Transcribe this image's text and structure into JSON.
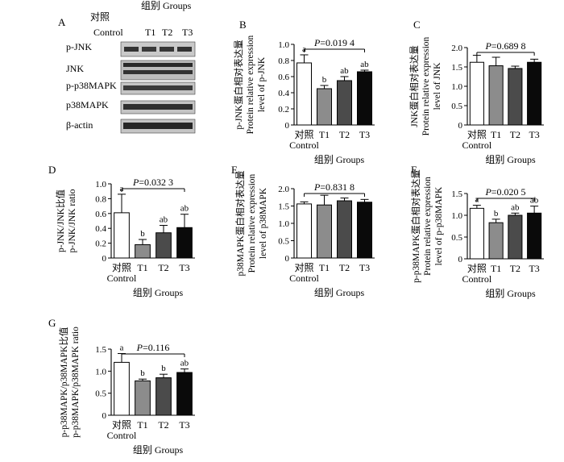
{
  "blot": {
    "letter": "A",
    "groups_title": "组别 Groups",
    "column_labels": [
      "对照",
      "Control",
      "T1",
      "T2",
      "T3"
    ],
    "rows": [
      "p-JNK",
      "JNK",
      "p-p38MAPK",
      "p38MAPK",
      "β-actin"
    ]
  },
  "chart_data": [
    {
      "letter": "B",
      "type": "bar",
      "categories": [
        "对照\nControl",
        "T1",
        "T2",
        "T3"
      ],
      "values": [
        0.77,
        0.45,
        0.55,
        0.66
      ],
      "errors": [
        0.1,
        0.04,
        0.05,
        0.02
      ],
      "sig_letters": [
        "a",
        "b",
        "ab",
        "ab"
      ],
      "p_value": "P=0.019 4",
      "ylabel": [
        "p-JNK蛋白相对表达量",
        "Protein relative expression",
        "level of p-JNK"
      ],
      "xlabel": "组别 Groups",
      "ylim": [
        0,
        1.0
      ],
      "yticks": [
        "0",
        "0.2",
        "0.4",
        "0.6",
        "0.8",
        "1.0"
      ]
    },
    {
      "letter": "C",
      "type": "bar",
      "categories": [
        "对照\nControl",
        "T1",
        "T2",
        "T3"
      ],
      "values": [
        1.62,
        1.53,
        1.46,
        1.62
      ],
      "errors": [
        0.18,
        0.22,
        0.06,
        0.08
      ],
      "sig_letters": [
        "",
        "",
        "",
        ""
      ],
      "p_value": "P=0.689 8",
      "ylabel": [
        "JNK蛋白相对表达量",
        "Protein relative expression",
        "level of JNK"
      ],
      "xlabel": "组别 Groups",
      "ylim": [
        0,
        2.0
      ],
      "yticks": [
        "0",
        "0.5",
        "1.0",
        "1.5",
        "2.0"
      ]
    },
    {
      "letter": "D",
      "type": "bar",
      "categories": [
        "对照\nControl",
        "T1",
        "T2",
        "T3"
      ],
      "values": [
        0.61,
        0.18,
        0.34,
        0.41
      ],
      "errors": [
        0.25,
        0.07,
        0.1,
        0.18
      ],
      "sig_letters": [
        "a",
        "b",
        "ab",
        "ab"
      ],
      "p_value": "P=0.032 3",
      "ylabel": [
        "p-JNK/JNK比值",
        "p-JNK/JNK ratio"
      ],
      "xlabel": "组别 Groups",
      "ylim": [
        0,
        1.0
      ],
      "yticks": [
        "0",
        "0.2",
        "0.4",
        "0.6",
        "0.8",
        "1.0"
      ]
    },
    {
      "letter": "E",
      "type": "bar",
      "categories": [
        "对照\nControl",
        "T1",
        "T2",
        "T3"
      ],
      "values": [
        1.56,
        1.53,
        1.65,
        1.61
      ],
      "errors": [
        0.06,
        0.28,
        0.08,
        0.08
      ],
      "sig_letters": [
        "",
        "",
        "",
        ""
      ],
      "p_value": "P=0.831 8",
      "ylabel": [
        "p38MAPK蛋白相对表达量",
        "Protein relative expression",
        "level of p38MAPK"
      ],
      "xlabel": "组别 Groups",
      "ylim": [
        0,
        2.0
      ],
      "yticks": [
        "0",
        "0.5",
        "1.0",
        "1.5",
        "2.0"
      ]
    },
    {
      "letter": "F",
      "type": "bar",
      "categories": [
        "对照\nControl",
        "T1",
        "T2",
        "T3"
      ],
      "values": [
        1.16,
        0.83,
        1.0,
        1.05
      ],
      "errors": [
        0.07,
        0.08,
        0.05,
        0.16
      ],
      "sig_letters": [
        "a",
        "b",
        "ab",
        "ab"
      ],
      "p_value": "P=0.020 5",
      "ylabel": [
        "p-p38MAPK蛋白相对表达量",
        "Protein relative expression",
        "level of p-p38MAPK"
      ],
      "xlabel": "组别 Groups",
      "ylim": [
        0,
        1.5
      ],
      "yticks": [
        "0",
        "0.5",
        "1.0",
        "1.5"
      ]
    },
    {
      "letter": "G",
      "type": "bar",
      "categories": [
        "对照\nControl",
        "T1",
        "T2",
        "T3"
      ],
      "values": [
        1.2,
        0.78,
        0.85,
        0.97
      ],
      "errors": [
        0.2,
        0.04,
        0.08,
        0.08
      ],
      "sig_letters": [
        "a",
        "b",
        "b",
        "ab"
      ],
      "p_value": "P=0.116",
      "ylabel": [
        "p-p38MAPK/p38MAPK比值",
        "p-p38MAPK/p38MAPK ratio"
      ],
      "xlabel": "组别 Groups",
      "ylim": [
        0,
        1.5
      ],
      "yticks": [
        "0",
        "0.5",
        "1.0",
        "1.5"
      ]
    }
  ]
}
